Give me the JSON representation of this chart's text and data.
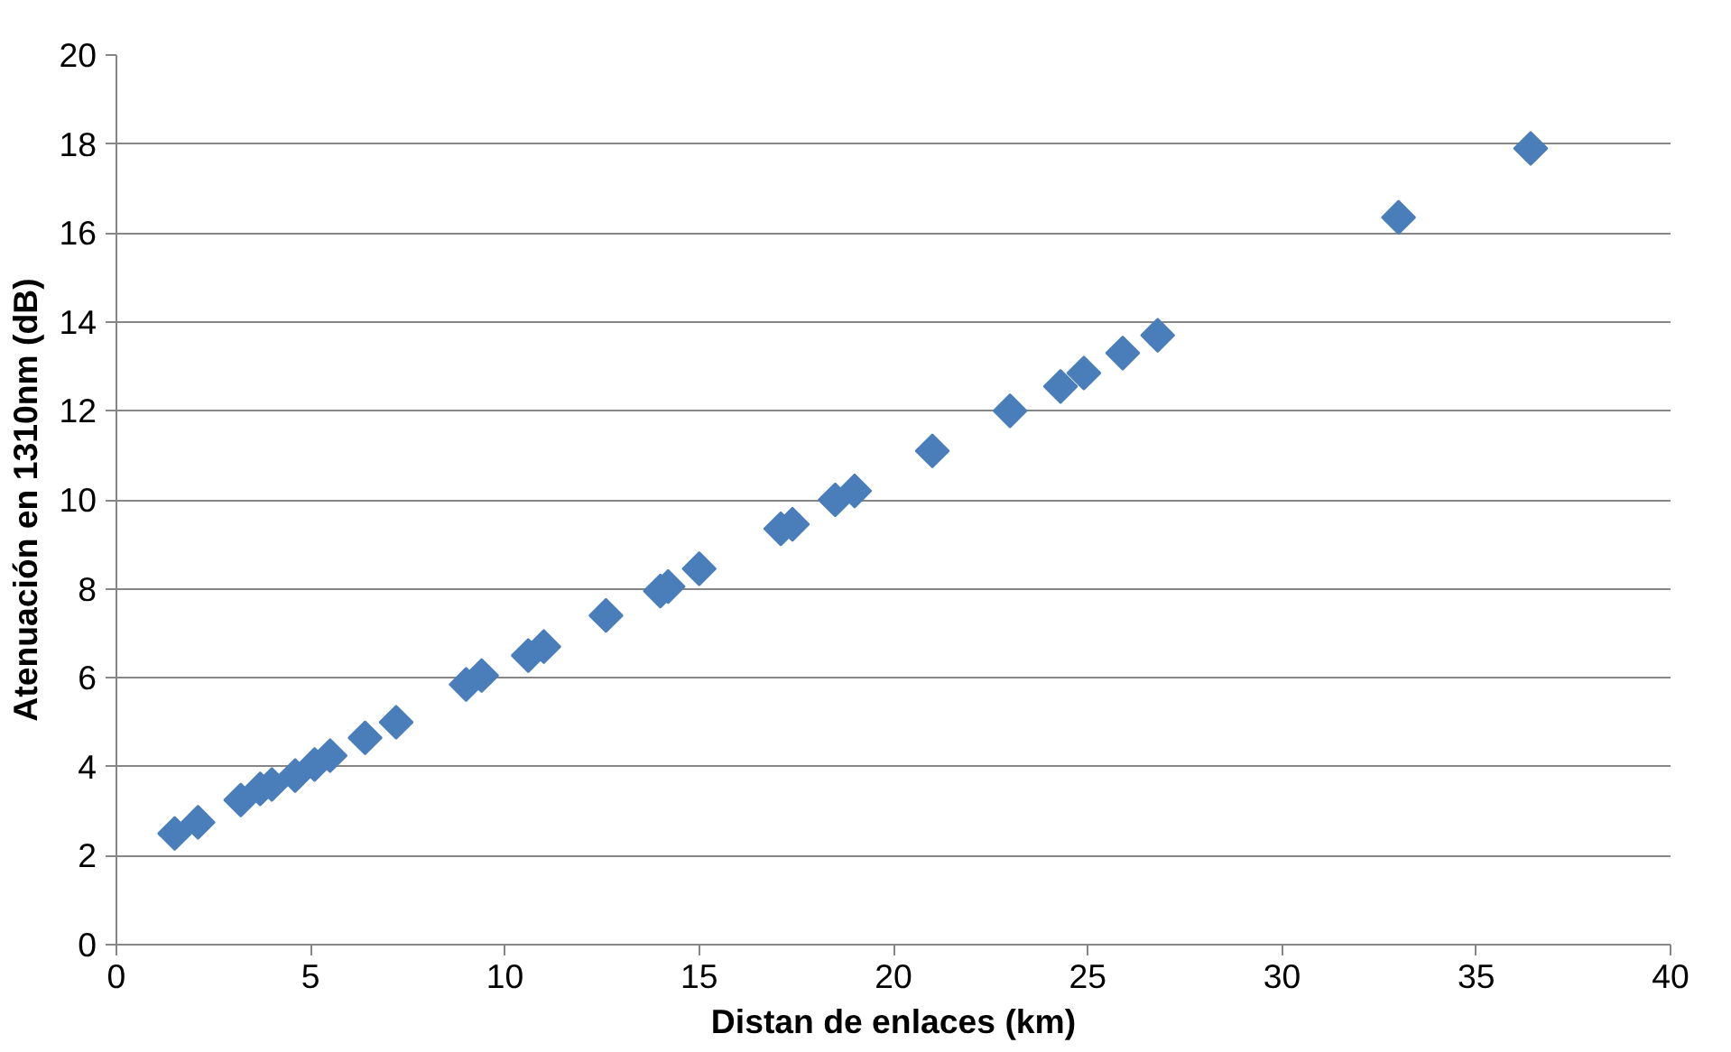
{
  "chart_data": {
    "type": "scatter",
    "xlabel": "Distan de enlaces (km)",
    "ylabel": "Atenuación en 1310nm (dB)",
    "xlim": [
      0,
      40
    ],
    "xticks": [
      0,
      5,
      10,
      15,
      20,
      25,
      30,
      35,
      40
    ],
    "ylim": [
      0,
      20
    ],
    "yticks": [
      0,
      2,
      4,
      6,
      8,
      10,
      12,
      14,
      16,
      18,
      20
    ],
    "grid": "y",
    "marker": "diamond",
    "series": [
      {
        "color": "#4a7ebb",
        "x": [
          1.5,
          2.1,
          3.2,
          3.7,
          4.0,
          4.6,
          5.1,
          5.5,
          6.4,
          7.2,
          9.0,
          9.4,
          10.6,
          11.0,
          12.6,
          14.0,
          14.2,
          15.0,
          17.1,
          17.4,
          18.5,
          19.0,
          21.0,
          23.0,
          24.3,
          24.9,
          25.9,
          26.8,
          33.0,
          36.4
        ],
        "values": [
          2.5,
          2.75,
          3.25,
          3.5,
          3.6,
          3.8,
          4.05,
          4.25,
          4.65,
          5.0,
          5.85,
          6.05,
          6.5,
          6.7,
          7.4,
          7.95,
          8.05,
          8.45,
          9.35,
          9.45,
          10.0,
          10.2,
          11.1,
          12.0,
          12.55,
          12.85,
          13.3,
          13.7,
          16.35,
          17.9
        ]
      }
    ]
  }
}
